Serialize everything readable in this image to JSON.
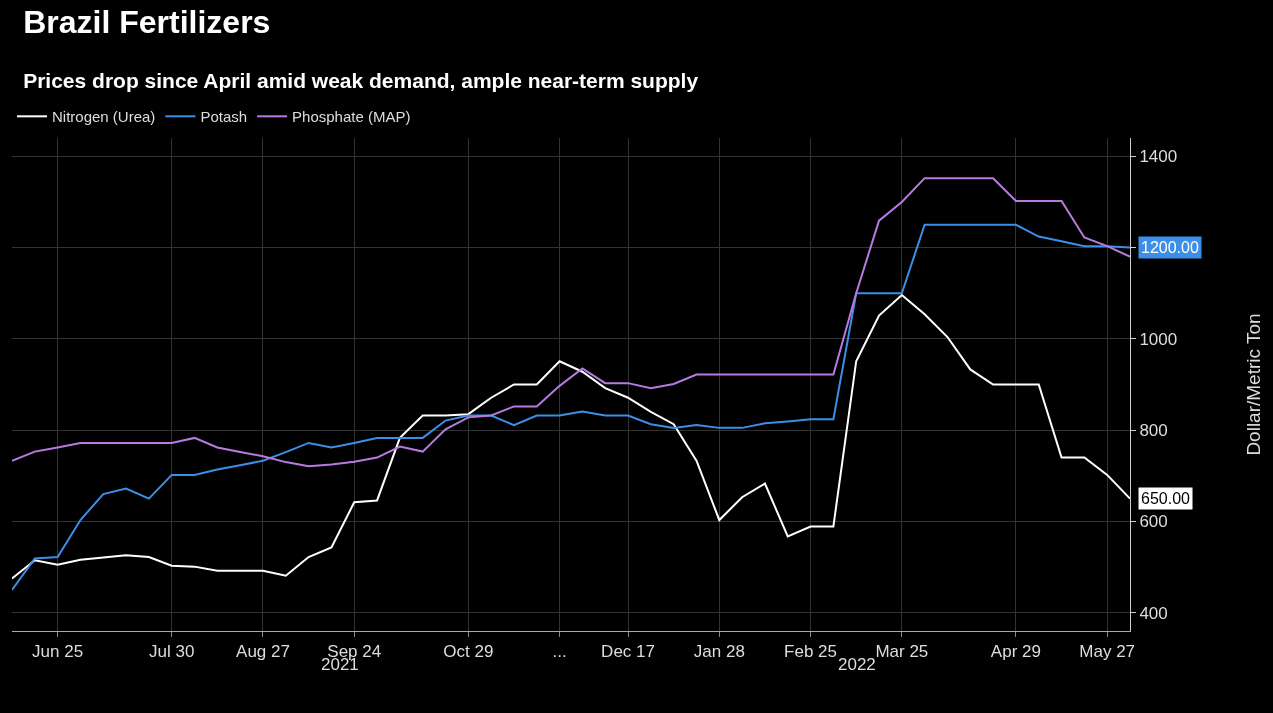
{
  "chart_data": {
    "type": "line",
    "title": "Brazil Fertilizers",
    "subtitle": "Prices drop since April amid weak demand, ample near-term supply",
    "ylabel": "Dollar/Metric Ton",
    "categories": [
      null,
      null,
      "Jun 25",
      null,
      null,
      null,
      null,
      "Jul 30",
      null,
      null,
      null,
      "Aug 27",
      null,
      null,
      null,
      "Sep 24",
      null,
      null,
      null,
      null,
      "Oct 29",
      null,
      null,
      null,
      "...",
      null,
      null,
      "Dec 17",
      null,
      null,
      null,
      "Jan 28",
      null,
      null,
      null,
      "Feb 25",
      null,
      null,
      null,
      "Mar 25",
      null,
      null,
      null,
      null,
      "Apr 29",
      null,
      null,
      null,
      "May 27",
      null
    ],
    "series": [
      {
        "name": "Nitrogen (Urea)",
        "color": "#ffffff",
        "values": [
          475,
          515,
          505,
          516,
          521,
          526,
          522,
          503,
          501,
          492,
          492,
          492,
          481,
          522,
          543,
          642,
          646,
          783,
          832,
          832,
          835,
          871,
          900,
          900,
          951,
          928,
          892,
          871,
          840,
          813,
          733,
          603,
          653,
          683,
          567,
          589,
          589,
          951,
          1051,
          1096,
          1054,
          1004,
          933,
          900,
          900,
          900,
          740,
          740,
          702,
          650
        ],
        "value_labels": [
          null,
          null,
          null,
          null,
          null,
          null,
          null,
          null,
          null,
          null,
          null,
          null,
          null,
          null,
          null,
          null,
          null,
          null,
          null,
          null,
          null,
          null,
          null,
          null,
          null,
          null,
          null,
          null,
          null,
          null,
          null,
          null,
          null,
          null,
          null,
          null,
          null,
          null,
          null,
          null,
          null,
          null,
          null,
          null,
          null,
          null,
          null,
          null,
          null,
          "650.00"
        ]
      },
      {
        "name": "Potash",
        "color": "#3b8fe8",
        "values": [
          450,
          519,
          522,
          603,
          660,
          672,
          650,
          702,
          702,
          714,
          723,
          733,
          752,
          772,
          762,
          772,
          783,
          783,
          783,
          821,
          832,
          832,
          811,
          832,
          832,
          841,
          832,
          832,
          813,
          805,
          811,
          805,
          805,
          815,
          819,
          824,
          824,
          1100,
          1100,
          1100,
          1250,
          1250,
          1250,
          1250,
          1250,
          1224,
          1214,
          1203,
          1203,
          1200
        ],
        "value_labels": [
          null,
          null,
          null,
          null,
          null,
          null,
          null,
          null,
          null,
          null,
          null,
          null,
          null,
          null,
          null,
          null,
          null,
          null,
          null,
          null,
          null,
          null,
          null,
          null,
          null,
          null,
          null,
          null,
          null,
          null,
          null,
          null,
          null,
          null,
          null,
          null,
          null,
          null,
          null,
          null,
          null,
          null,
          null,
          null,
          null,
          null,
          null,
          null,
          null,
          "1200.00"
        ]
      },
      {
        "name": "Phosphate (MAP)",
        "color": "#b77be0",
        "values": [
          733,
          753,
          762,
          772,
          772,
          772,
          772,
          772,
          783,
          762,
          752,
          743,
          730,
          721,
          725,
          731,
          740,
          764,
          753,
          802,
          828,
          832,
          852,
          852,
          897,
          935,
          903,
          903,
          892,
          901,
          922,
          922,
          922,
          922,
          922,
          922,
          922,
          1100,
          1259,
          1300,
          1352,
          1352,
          1352,
          1352,
          1302,
          1302,
          1302,
          1222,
          1203,
          1180
        ]
      }
    ],
    "annotations": [
      "2021",
      "2022"
    ],
    "ylim": [
      360,
      1440
    ],
    "yticks": [
      400,
      600,
      800,
      1000,
      {
        "value": 1200,
        "label": null
      },
      1400
    ],
    "grid": true,
    "legend": "top left",
    "marker": "none",
    "line_style": "solid"
  }
}
